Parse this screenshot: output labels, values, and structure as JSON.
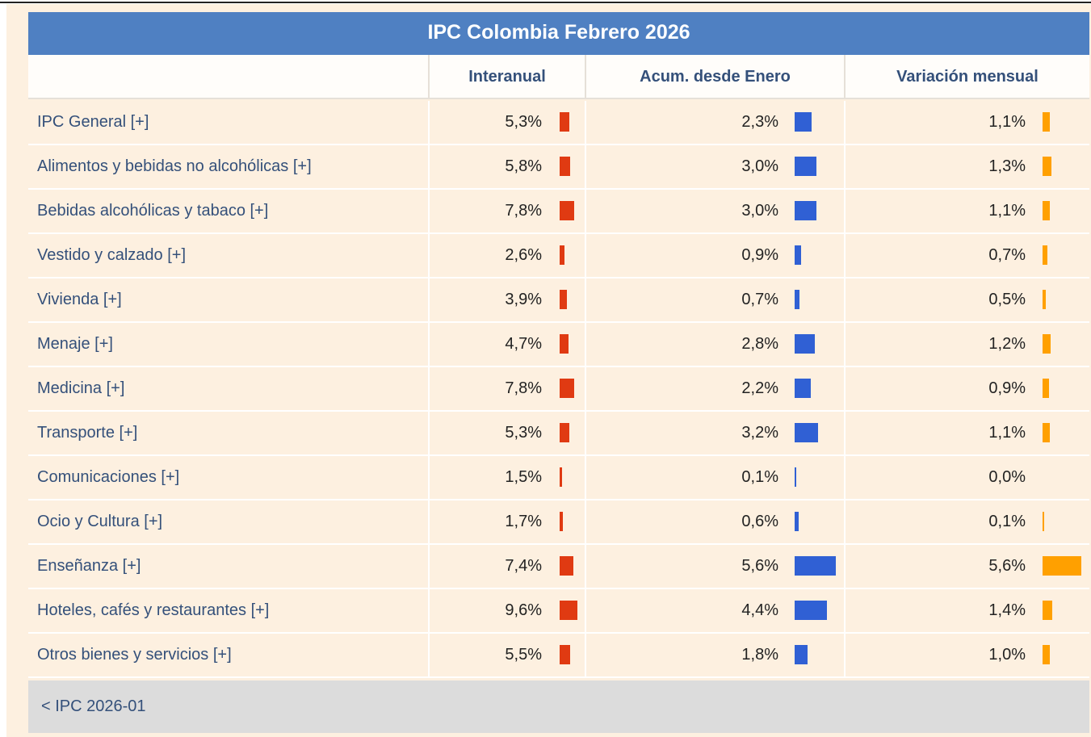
{
  "table": {
    "title": "IPC Colombia Febrero 2026",
    "headers": [
      "Interanual",
      "Acum. desde Enero",
      "Variación mensual"
    ],
    "colors": [
      "#e03a12",
      "#3060d4",
      "#ffa000"
    ],
    "rows": [
      {
        "label": "IPC General [+]",
        "values": [
          5.3,
          2.3,
          1.1
        ],
        "value_labels": [
          "5,3%",
          "2,3%",
          "1,1%"
        ]
      },
      {
        "label": "Alimentos y bebidas no alcohólicas [+]",
        "values": [
          5.8,
          3.0,
          1.3
        ],
        "value_labels": [
          "5,8%",
          "3,0%",
          "1,3%"
        ]
      },
      {
        "label": "Bebidas alcohólicas y tabaco [+]",
        "values": [
          7.8,
          3.0,
          1.1
        ],
        "value_labels": [
          "7,8%",
          "3,0%",
          "1,1%"
        ]
      },
      {
        "label": "Vestido y calzado [+]",
        "values": [
          2.6,
          0.9,
          0.7
        ],
        "value_labels": [
          "2,6%",
          "0,9%",
          "0,7%"
        ]
      },
      {
        "label": "Vivienda [+]",
        "values": [
          3.9,
          0.7,
          0.5
        ],
        "value_labels": [
          "3,9%",
          "0,7%",
          "0,5%"
        ]
      },
      {
        "label": "Menaje [+]",
        "values": [
          4.7,
          2.8,
          1.2
        ],
        "value_labels": [
          "4,7%",
          "2,8%",
          "1,2%"
        ]
      },
      {
        "label": "Medicina [+]",
        "values": [
          7.8,
          2.2,
          0.9
        ],
        "value_labels": [
          "7,8%",
          "2,2%",
          "0,9%"
        ]
      },
      {
        "label": "Transporte [+]",
        "values": [
          5.3,
          3.2,
          1.1
        ],
        "value_labels": [
          "5,3%",
          "3,2%",
          "1,1%"
        ]
      },
      {
        "label": "Comunicaciones [+]",
        "values": [
          1.5,
          0.1,
          0.0
        ],
        "value_labels": [
          "1,5%",
          "0,1%",
          "0,0%"
        ]
      },
      {
        "label": "Ocio y Cultura [+]",
        "values": [
          1.7,
          0.6,
          0.1
        ],
        "value_labels": [
          "1,7%",
          "0,6%",
          "0,1%"
        ]
      },
      {
        "label": "Enseñanza [+]",
        "values": [
          7.4,
          5.6,
          5.6
        ],
        "value_labels": [
          "7,4%",
          "5,6%",
          "5,6%"
        ]
      },
      {
        "label": "Hoteles, cafés y restaurantes [+]",
        "values": [
          9.6,
          4.4,
          1.4
        ],
        "value_labels": [
          "9,6%",
          "4,4%",
          "1,4%"
        ]
      },
      {
        "label": "Otros bienes y servicios [+]",
        "values": [
          5.5,
          1.8,
          1.0
        ],
        "value_labels": [
          "5,5%",
          "1,8%",
          "1,0%"
        ]
      }
    ],
    "footer": "< IPC 2026-01"
  }
}
